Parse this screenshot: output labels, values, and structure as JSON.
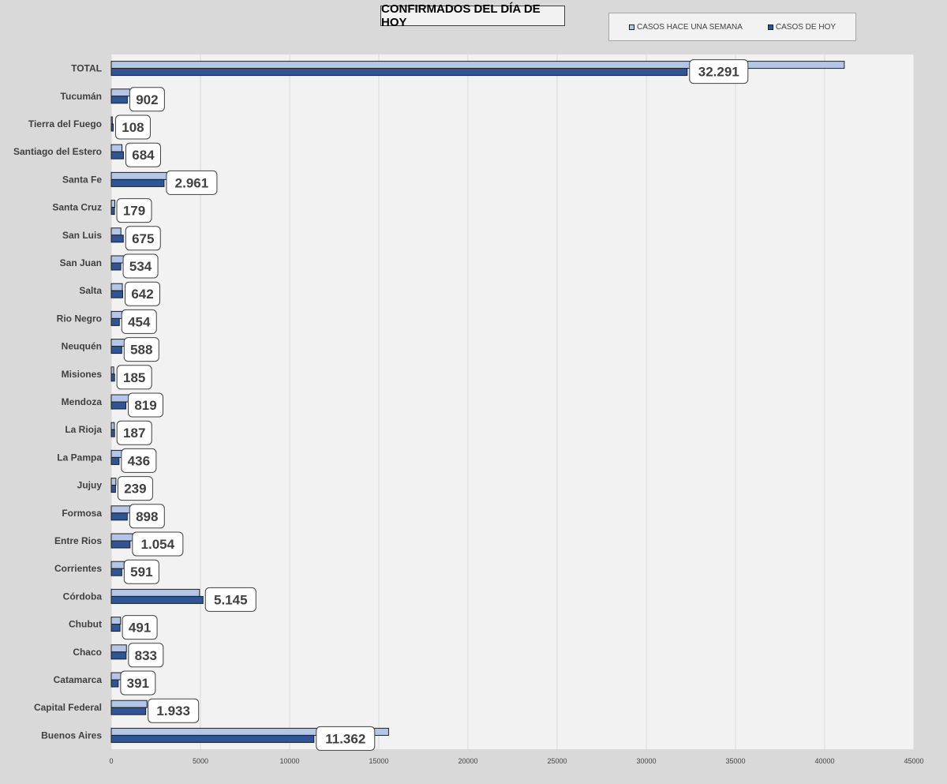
{
  "chart_data": {
    "type": "bar",
    "orientation": "horizontal",
    "title": "CONFIRMADOS DEL DÍA DE HOY",
    "legend_position": "top-right",
    "categories": [
      "TOTAL",
      "Tucumán",
      "Tierra del Fuego",
      "Santiago del Estero",
      "Santa Fe",
      "Santa Cruz",
      "San Luis",
      "San Juan",
      "Salta",
      "Rio Negro",
      "Neuquén",
      "Misiones",
      "Mendoza",
      "La Rioja",
      "La Pampa",
      "Jujuy",
      "Formosa",
      "Entre Rios",
      "Corrientes",
      "Córdoba",
      "Chubut",
      "Chaco",
      "Catamarca",
      "Capital Federal",
      "Buenos Aires"
    ],
    "series": [
      {
        "name": "CASOS HACE UNA SEMANA",
        "color": "#b4c6e7",
        "values": [
          41100,
          1050,
          60,
          600,
          3200,
          200,
          540,
          680,
          620,
          600,
          780,
          140,
          1050,
          170,
          600,
          260,
          1100,
          1200,
          720,
          4950,
          520,
          850,
          600,
          2000,
          15550
        ]
      },
      {
        "name": "CASOS DE HOY",
        "color": "#2f5597",
        "values": [
          32291,
          902,
          108,
          684,
          2961,
          179,
          675,
          534,
          642,
          454,
          588,
          185,
          819,
          187,
          436,
          239,
          898,
          1054,
          591,
          5145,
          491,
          833,
          391,
          1933,
          11362
        ]
      }
    ],
    "data_labels": [
      "32.291",
      "902",
      "108",
      "684",
      "2.961",
      "179",
      "675",
      "534",
      "642",
      "454",
      "588",
      "185",
      "819",
      "187",
      "436",
      "239",
      "898",
      "1.054",
      "591",
      "5.145",
      "491",
      "833",
      "391",
      "1.933",
      "11.362"
    ],
    "x_ticks": [
      "0",
      "5000",
      "10000",
      "15000",
      "20000",
      "25000",
      "30000",
      "35000",
      "40000",
      "45000"
    ],
    "xlim": [
      0,
      45000
    ],
    "grid": true
  }
}
